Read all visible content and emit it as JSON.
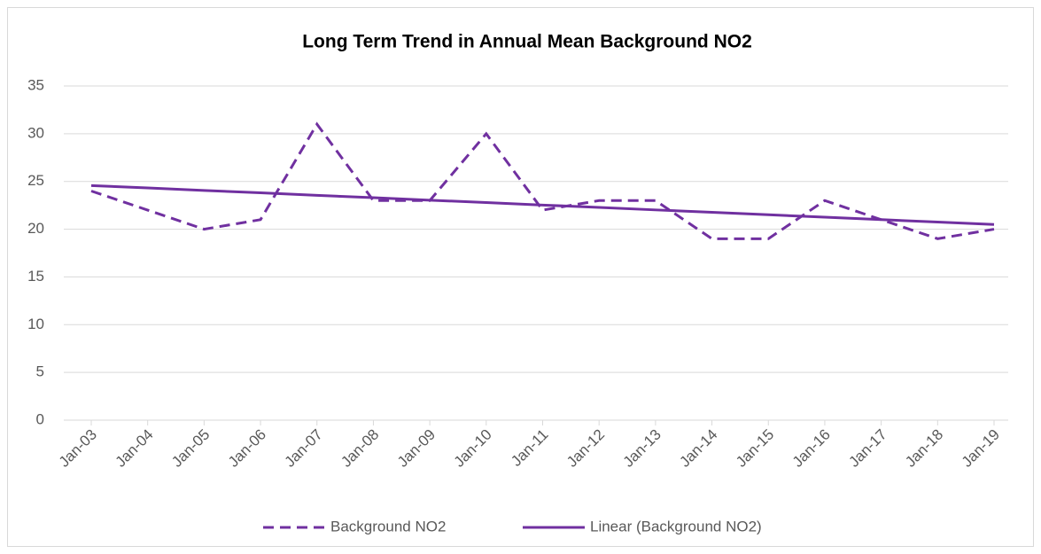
{
  "chart_data": {
    "type": "line",
    "title": "Long Term Trend in Annual Mean Background NO2",
    "categories": [
      "Jan-03",
      "Jan-04",
      "Jan-05",
      "Jan-06",
      "Jan-07",
      "Jan-08",
      "Jan-09",
      "Jan-10",
      "Jan-11",
      "Jan-12",
      "Jan-13",
      "Jan-14",
      "Jan-15",
      "Jan-16",
      "Jan-17",
      "Jan-18",
      "Jan-19"
    ],
    "series": [
      {
        "name": "Background NO2",
        "color": "#7030a0",
        "dashed": true,
        "values": [
          24,
          22,
          20,
          21,
          31,
          23,
          23,
          30,
          22,
          23,
          23,
          19,
          19,
          23,
          21,
          19,
          20
        ]
      },
      {
        "name": "Linear (Background NO2)",
        "color": "#7030a0",
        "dashed": false,
        "values": [
          24.57,
          24.32,
          24.06,
          23.81,
          23.55,
          23.3,
          23.04,
          22.79,
          22.53,
          22.28,
          22.02,
          21.77,
          21.51,
          21.26,
          21.0,
          20.75,
          20.49
        ]
      }
    ],
    "ylim": [
      0,
      35
    ],
    "yticks": [
      0,
      5,
      10,
      15,
      20,
      25,
      30,
      35
    ],
    "grid": true,
    "legend": "bottom"
  }
}
